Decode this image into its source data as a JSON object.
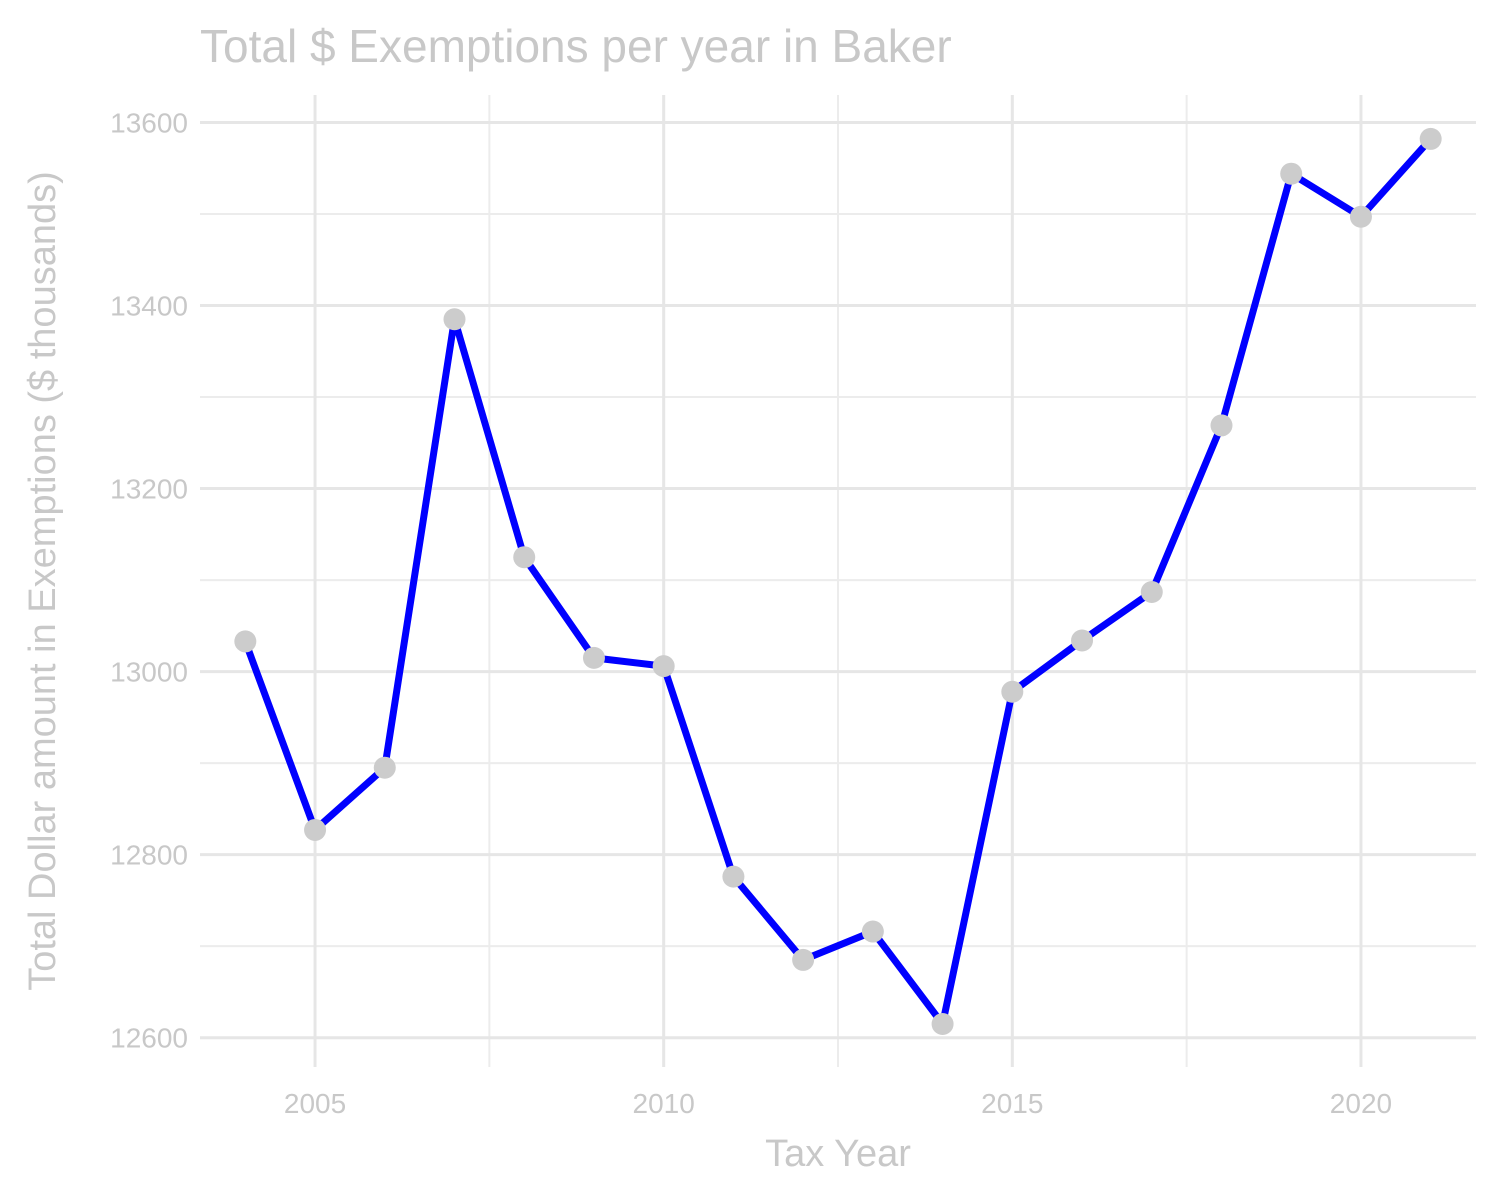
{
  "chart_data": {
    "type": "line",
    "title": "Total $ Exemptions per year in Baker",
    "xlabel": "Tax Year",
    "ylabel": "Total Dollar amount in Exemptions ($ thousands)",
    "x": [
      2004,
      2005,
      2006,
      2007,
      2008,
      2009,
      2010,
      2011,
      2012,
      2013,
      2014,
      2015,
      2016,
      2017,
      2018,
      2019,
      2020,
      2021
    ],
    "series": [
      {
        "values": [
          13033,
          12827,
          12895,
          13385,
          13125,
          13015,
          13006,
          12776,
          12685,
          12716,
          12615,
          12978,
          13034,
          13087,
          13269,
          13544,
          13497,
          13582
        ]
      }
    ],
    "xlim": [
      2003.35,
      2021.65
    ],
    "ylim": [
      12568,
      13630
    ],
    "xticks": [
      2005,
      2010,
      2015,
      2020
    ],
    "xtick_labels": [
      "2005",
      "2010",
      "2015",
      "2020"
    ],
    "yticks": [
      12600,
      12800,
      13000,
      13200,
      13400,
      13600
    ],
    "ytick_labels": [
      "12600",
      "12800",
      "13000",
      "13200",
      "13400",
      "13600"
    ],
    "grid": true,
    "line_color": "#0000ff",
    "point_color": "#cccccc",
    "text_color": "#c8c8c8",
    "grid_color": "#e6e6e6"
  }
}
